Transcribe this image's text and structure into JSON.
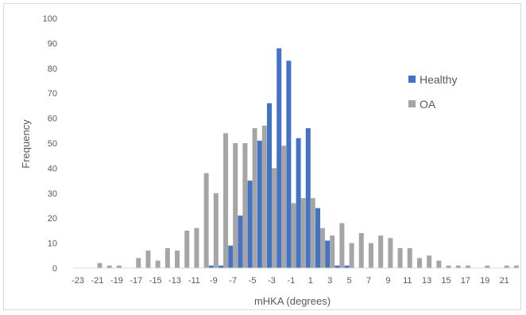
{
  "chart_data": {
    "type": "bar",
    "xlabel": "mHKA (degrees)",
    "ylabel": "Frequency",
    "ylim": [
      0,
      100
    ],
    "yticks": [
      0,
      10,
      20,
      30,
      40,
      50,
      60,
      70,
      80,
      90,
      100
    ],
    "x": [
      -23,
      -22,
      -21,
      -20,
      -19,
      -18,
      -17,
      -16,
      -15,
      -14,
      -13,
      -12,
      -11,
      -10,
      -9,
      -8,
      -7,
      -6,
      -5,
      -4,
      -3,
      -2,
      -1,
      0,
      1,
      2,
      3,
      4,
      5,
      6,
      7,
      8,
      9,
      10,
      11,
      12,
      13,
      14,
      15,
      16,
      17,
      18,
      19,
      20,
      21,
      22
    ],
    "xtick_labels": [
      "-23",
      "-21",
      "-19",
      "-17",
      "-15",
      "-13",
      "-11",
      "-9",
      "-7",
      "-5",
      "-3",
      "-1",
      "1",
      "3",
      "5",
      "7",
      "9",
      "11",
      "13",
      "15",
      "17",
      "19",
      "21"
    ],
    "series": [
      {
        "name": "Healthy",
        "color": "#4472c4",
        "values": [
          0,
          0,
          0,
          0,
          0,
          0,
          0,
          0,
          0,
          0,
          0,
          0,
          0,
          0,
          1,
          1,
          9,
          21,
          35,
          51,
          66,
          88,
          83,
          52,
          56,
          24,
          11,
          1,
          1,
          0,
          0,
          0,
          0,
          0,
          0,
          0,
          0,
          0,
          0,
          0,
          0,
          0,
          0,
          0,
          0,
          0
        ]
      },
      {
        "name": "OA",
        "color": "#a5a5a5",
        "values": [
          0,
          0,
          2,
          1,
          1,
          0,
          4,
          7,
          3,
          8,
          7,
          15,
          16,
          38,
          30,
          54,
          50,
          50,
          56,
          57,
          40,
          49,
          26,
          28,
          28,
          16,
          13,
          18,
          10,
          14,
          10,
          13,
          12,
          8,
          8,
          4,
          5,
          3,
          1,
          1,
          1,
          0,
          1,
          0,
          1,
          1
        ]
      }
    ],
    "legend_position": "right",
    "gridlines": false
  }
}
